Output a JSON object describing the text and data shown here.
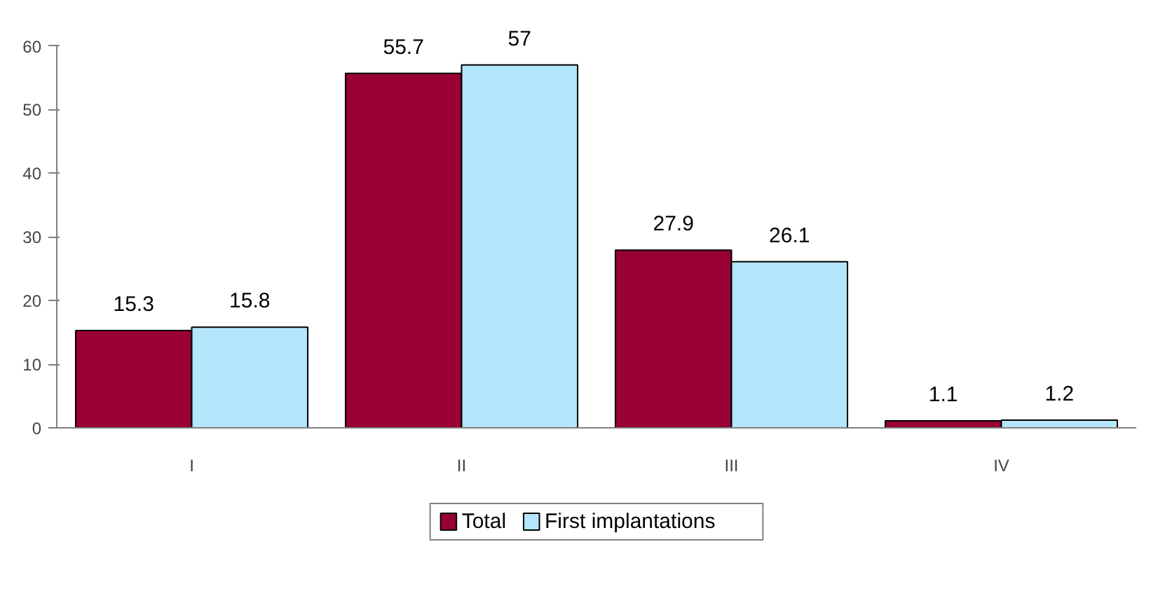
{
  "chart_data": {
    "type": "bar",
    "categories": [
      "I",
      "II",
      "III",
      "IV"
    ],
    "series": [
      {
        "name": "Total",
        "color": "#990033",
        "values": [
          15.3,
          55.7,
          27.9,
          1.1
        ]
      },
      {
        "name": "First implantations",
        "color": "#b3e5fb",
        "values": [
          15.8,
          57,
          26.1,
          1.2
        ]
      }
    ],
    "ylim": [
      0,
      60
    ],
    "yticks": [
      0,
      10,
      20,
      30,
      40,
      50,
      60
    ],
    "grid": false,
    "legend": "bottom",
    "data_labels": true
  }
}
